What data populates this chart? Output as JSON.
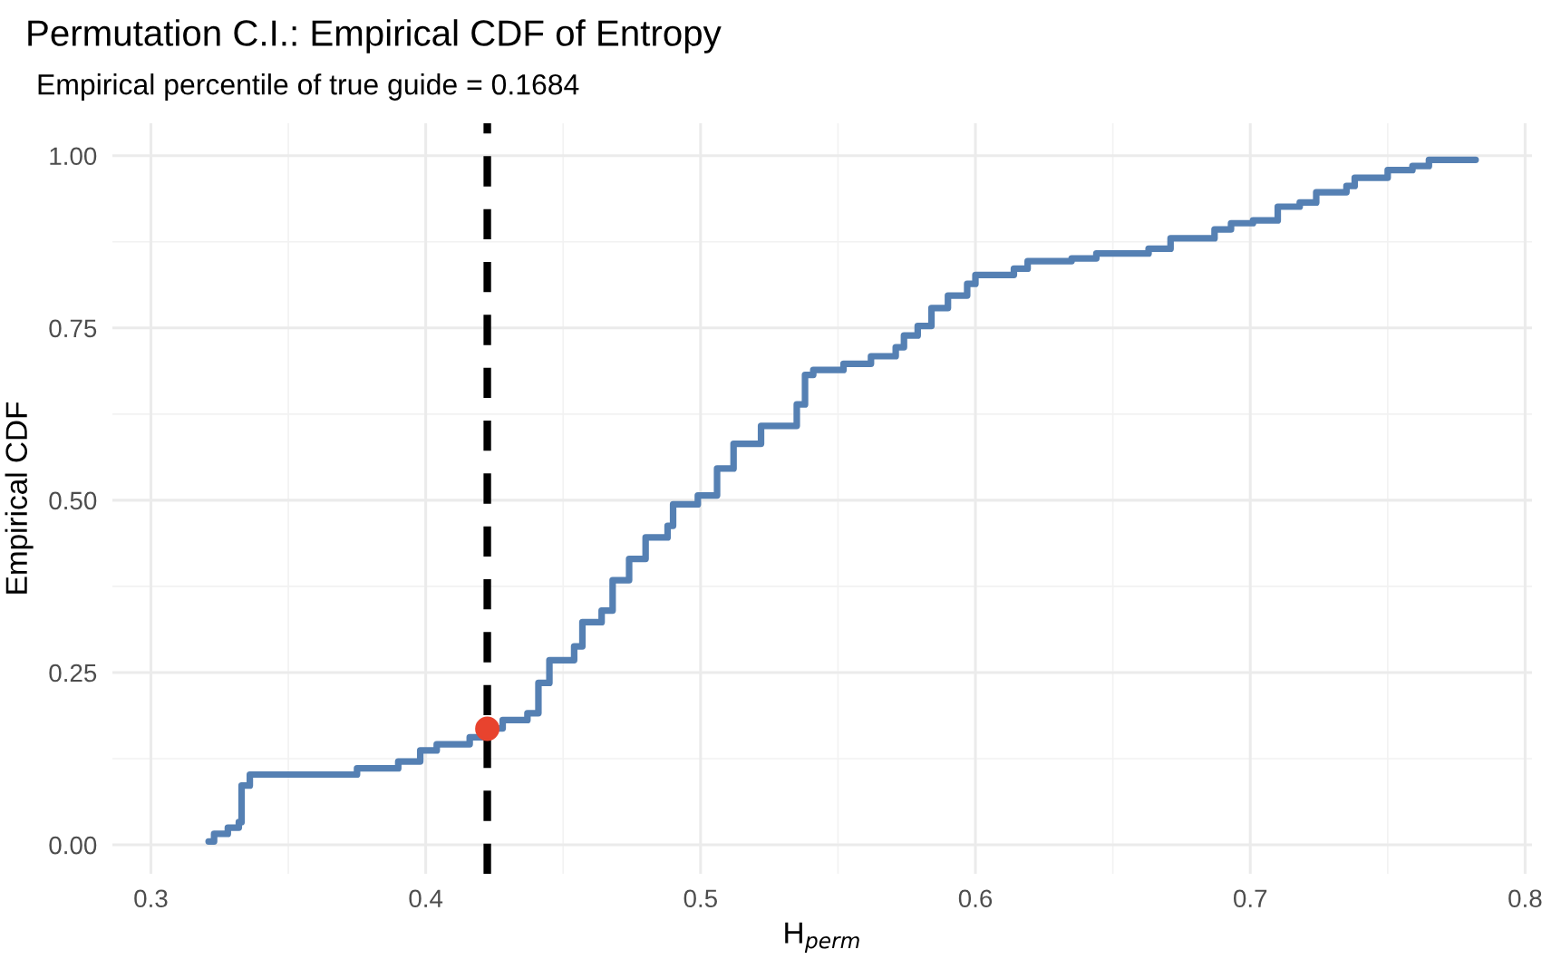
{
  "chart_data": {
    "type": "step",
    "title": "Permutation C.I.: Empirical CDF of Entropy",
    "subtitle": "Empirical percentile of true guide = 0.1684",
    "xlabel": "H$_{perm}$",
    "ylabel": "Empirical CDF",
    "xlim": [
      0.286,
      0.8025
    ],
    "ylim": [
      -0.042,
      1.047
    ],
    "xticks": [
      0.3,
      0.4,
      0.5,
      0.6,
      0.7,
      {
        "value": 0.8,
        "label": "0.8"
      }
    ],
    "yticks": [
      {
        "value": 0,
        "label": "0.00"
      },
      {
        "value": 0.25,
        "label": "0.25"
      },
      {
        "value": 0.5,
        "label": "0.50"
      },
      {
        "value": 0.75,
        "label": "0.75"
      },
      {
        "value": 1.0,
        "label": "1.00"
      }
    ],
    "grid": true,
    "legend": false,
    "series": [
      {
        "color": "#5580b3",
        "x": [
          0.321,
          0.323,
          0.328,
          0.332,
          0.333,
          0.336,
          0.375,
          0.39,
          0.398,
          0.404,
          0.416,
          0.4224,
          0.428,
          0.437,
          0.441,
          0.445,
          0.454,
          0.457,
          0.464,
          0.468,
          0.474,
          0.48,
          0.488,
          0.49,
          0.499,
          0.506,
          0.512,
          0.522,
          0.535,
          0.538,
          0.541,
          0.552,
          0.562,
          0.571,
          0.574,
          0.579,
          0.584,
          0.59,
          0.597,
          0.6,
          0.614,
          0.619,
          0.635,
          0.644,
          0.663,
          0.671,
          0.687,
          0.693,
          0.701,
          0.71,
          0.718,
          0.724,
          0.735,
          0.738,
          0.75,
          0.759,
          0.765,
          0.782
        ],
        "values": [
          0.005,
          0.016,
          0.025,
          0.033,
          0.086,
          0.102,
          0.111,
          0.121,
          0.137,
          0.146,
          0.156,
          0.169,
          0.181,
          0.191,
          0.235,
          0.268,
          0.288,
          0.323,
          0.34,
          0.384,
          0.415,
          0.446,
          0.463,
          0.494,
          0.507,
          0.546,
          0.582,
          0.608,
          0.639,
          0.682,
          0.689,
          0.698,
          0.709,
          0.722,
          0.739,
          0.753,
          0.779,
          0.797,
          0.814,
          0.827,
          0.836,
          0.847,
          0.851,
          0.858,
          0.865,
          0.88,
          0.893,
          0.902,
          0.906,
          0.926,
          0.932,
          0.947,
          0.956,
          0.968,
          0.979,
          0.985,
          0.994,
          0.994
        ]
      },
      {
        "type": "scatter",
        "color": "#e8432e",
        "marker": "circle",
        "x": [
          0.4224
        ],
        "values": [
          0.1684
        ]
      }
    ],
    "ref_lines": [
      {
        "axis": "x",
        "value": 0.4224,
        "color": "#000000",
        "line_style": "dashed"
      }
    ]
  }
}
